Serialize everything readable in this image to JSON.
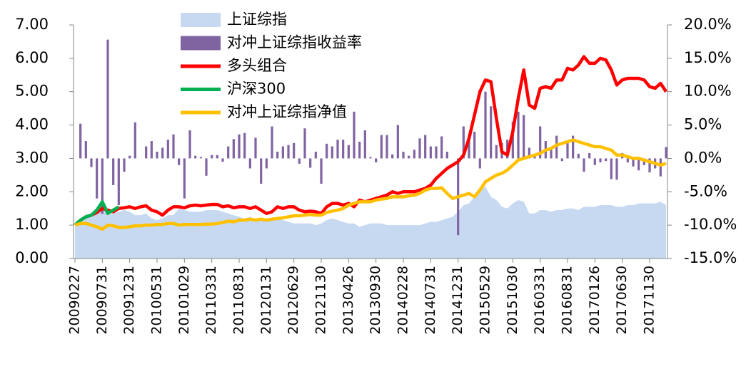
{
  "chart_data": {
    "type": "combo",
    "categories": [
      "20090227",
      null,
      null,
      null,
      null,
      "20090731",
      null,
      null,
      null,
      null,
      "20091231",
      null,
      null,
      null,
      null,
      "20100531",
      null,
      null,
      null,
      null,
      "20101029",
      null,
      null,
      null,
      null,
      "20110331",
      null,
      null,
      null,
      null,
      "20110831",
      null,
      null,
      null,
      null,
      "20120131",
      null,
      null,
      null,
      null,
      "20120629",
      null,
      null,
      null,
      null,
      "20121130",
      null,
      null,
      null,
      null,
      "20130426",
      null,
      null,
      null,
      null,
      "20130930",
      null,
      null,
      null,
      null,
      "20140228",
      null,
      null,
      null,
      null,
      "20140731",
      null,
      null,
      null,
      null,
      "20141231",
      null,
      null,
      null,
      null,
      "20150529",
      null,
      null,
      null,
      null,
      "20151030",
      null,
      null,
      null,
      null,
      "20160331",
      null,
      null,
      null,
      null,
      "20160831",
      null,
      null,
      null,
      null,
      "20170126",
      null,
      null,
      null,
      null,
      "20170630",
      null,
      null,
      null,
      null,
      "20171130",
      null,
      null,
      null
    ],
    "series": [
      {
        "name": "上证综指",
        "kind": "area",
        "color": "#c6d9f1",
        "values": [
          0.95,
          1.1,
          1.25,
          1.3,
          1.5,
          1.6,
          1.3,
          1.35,
          1.4,
          1.45,
          1.4,
          1.3,
          1.3,
          1.35,
          1.2,
          1.15,
          1.2,
          1.3,
          1.3,
          1.5,
          1.45,
          1.4,
          1.4,
          1.4,
          1.45,
          1.45,
          1.45,
          1.4,
          1.35,
          1.3,
          1.25,
          1.2,
          1.25,
          1.15,
          1.15,
          1.15,
          1.2,
          1.2,
          1.15,
          1.1,
          1.05,
          1.05,
          1.05,
          1.05,
          1.0,
          1.05,
          1.15,
          1.2,
          1.15,
          1.1,
          1.05,
          1.05,
          0.95,
          1.0,
          1.05,
          1.05,
          1.05,
          1.0,
          1.0,
          1.0,
          1.0,
          1.0,
          1.0,
          1.0,
          1.05,
          1.1,
          1.1,
          1.15,
          1.2,
          1.25,
          1.4,
          1.6,
          1.65,
          1.85,
          2.1,
          2.15,
          1.85,
          1.75,
          1.55,
          1.5,
          1.65,
          1.75,
          1.7,
          1.35,
          1.35,
          1.45,
          1.45,
          1.4,
          1.45,
          1.45,
          1.5,
          1.5,
          1.45,
          1.55,
          1.55,
          1.55,
          1.6,
          1.6,
          1.6,
          1.55,
          1.55,
          1.6,
          1.6,
          1.65,
          1.65,
          1.65,
          1.65,
          1.7,
          1.6
        ]
      },
      {
        "name": "对冲上证综指收益率",
        "kind": "bar",
        "axis": "y2",
        "color": "#8064a2",
        "values": [
          0,
          5.2,
          2.6,
          -1.3,
          -6.0,
          -8.3,
          17.8,
          -4.0,
          -7.0,
          -2.0,
          0.4,
          5.4,
          0,
          1.8,
          2.6,
          1.0,
          1.6,
          2.8,
          3.6,
          -1.0,
          -6.0,
          4.2,
          0.4,
          0.2,
          -2.6,
          0.5,
          0.5,
          -0.5,
          1.8,
          2.9,
          3.6,
          3.8,
          -1.5,
          3.1,
          -3.8,
          -1.5,
          4.8,
          1.0,
          1.8,
          2.0,
          2.3,
          -0.8,
          4.5,
          -1.4,
          1.0,
          -3.8,
          2.2,
          1.8,
          2.8,
          2.8,
          2.0,
          7.0,
          2.5,
          4.2,
          0.2,
          -0.6,
          3.5,
          3.5,
          0.6,
          5.0,
          1.0,
          0.4,
          1.3,
          3.0,
          3.5,
          1.8,
          1.8,
          3.3,
          1.0,
          0,
          -11.5,
          4.8,
          3.5,
          4.0,
          -1.5,
          10.0,
          7.8,
          2.0,
          2.3,
          2.8,
          5.5,
          7.0,
          6.5,
          1.6,
          0.5,
          4.8,
          2.6,
          1.5,
          3.4,
          -0.4,
          2.5,
          3.4,
          0.7,
          -2.0,
          0.8,
          -1.0,
          -0.6,
          -0.4,
          -3.1,
          -3.2,
          0.8,
          -0.6,
          -1.2,
          -1.8,
          -1.0,
          -2.1,
          -1.5,
          -2.7,
          1.7
        ]
      },
      {
        "name": "多头组合",
        "kind": "line",
        "color": "#ff0000",
        "values": [
          1.0,
          1.15,
          1.25,
          1.3,
          1.38,
          1.5,
          1.45,
          1.4,
          1.5,
          1.52,
          1.55,
          1.5,
          1.55,
          1.58,
          1.45,
          1.4,
          1.3,
          1.45,
          1.55,
          1.55,
          1.52,
          1.58,
          1.6,
          1.58,
          1.6,
          1.62,
          1.62,
          1.55,
          1.58,
          1.52,
          1.55,
          1.55,
          1.5,
          1.55,
          1.45,
          1.35,
          1.4,
          1.55,
          1.5,
          1.55,
          1.55,
          1.45,
          1.4,
          1.42,
          1.4,
          1.35,
          1.55,
          1.65,
          1.65,
          1.6,
          1.65,
          1.55,
          1.75,
          1.7,
          1.75,
          1.8,
          1.85,
          1.9,
          2.0,
          1.95,
          2.0,
          2.0,
          2.0,
          2.05,
          2.1,
          2.2,
          2.4,
          2.55,
          2.7,
          2.8,
          2.9,
          3.1,
          3.6,
          4.3,
          5.0,
          5.35,
          5.3,
          4.2,
          3.2,
          3.1,
          3.8,
          4.8,
          5.65,
          4.6,
          4.5,
          5.1,
          5.15,
          5.1,
          5.35,
          5.35,
          5.7,
          5.65,
          5.8,
          6.05,
          5.85,
          5.85,
          6.0,
          5.95,
          5.65,
          5.2,
          5.35,
          5.4,
          5.4,
          5.4,
          5.35,
          5.15,
          5.1,
          5.25,
          5.0
        ]
      },
      {
        "name": "沪深300",
        "kind": "line",
        "color": "#00b050",
        "values": [
          1.0,
          1.15,
          1.25,
          1.3,
          1.45,
          1.7,
          1.35,
          1.45,
          1.55,
          null,
          null,
          null,
          null,
          null,
          null,
          null,
          null,
          null,
          null,
          null,
          null,
          null,
          null,
          null,
          null,
          null,
          null,
          null,
          null,
          null,
          null,
          null,
          null,
          null,
          null,
          null,
          null,
          null,
          null,
          null,
          null,
          null,
          null,
          null,
          null,
          null,
          null,
          null,
          null,
          null,
          null,
          null,
          null,
          null,
          null,
          null,
          null,
          null,
          null,
          null,
          null,
          null,
          null,
          null,
          null,
          null,
          null,
          null,
          null,
          null,
          null,
          null,
          null,
          null,
          null,
          null,
          null,
          null,
          null,
          null,
          null,
          null,
          null,
          null,
          null,
          null,
          null,
          null,
          null,
          null,
          null,
          null,
          null,
          null,
          null,
          null,
          null,
          null,
          null,
          null,
          null,
          null,
          null,
          null,
          null,
          null,
          null,
          null,
          null
        ]
      },
      {
        "name": "对冲上证综指净值",
        "kind": "line",
        "color": "#ffc000",
        "values": [
          1.0,
          1.05,
          1.05,
          1.0,
          0.95,
          0.88,
          1.0,
          0.98,
          0.93,
          0.93,
          0.95,
          0.98,
          0.98,
          1.0,
          1.0,
          1.02,
          1.02,
          1.05,
          1.05,
          1.0,
          1.02,
          1.02,
          1.02,
          1.02,
          1.03,
          1.03,
          1.05,
          1.08,
          1.12,
          1.1,
          1.15,
          1.15,
          1.18,
          1.15,
          1.18,
          1.15,
          1.18,
          1.2,
          1.22,
          1.25,
          1.28,
          1.28,
          1.3,
          1.32,
          1.3,
          1.3,
          1.38,
          1.42,
          1.45,
          1.5,
          1.6,
          1.65,
          1.7,
          1.7,
          1.7,
          1.75,
          1.78,
          1.8,
          1.85,
          1.85,
          1.85,
          1.88,
          1.9,
          1.95,
          2.05,
          2.1,
          2.1,
          2.12,
          1.95,
          1.8,
          1.85,
          1.9,
          1.95,
          1.85,
          2.05,
          2.3,
          2.4,
          2.5,
          2.55,
          2.65,
          2.8,
          2.95,
          3.0,
          3.05,
          3.1,
          3.15,
          3.25,
          3.3,
          3.4,
          3.45,
          3.5,
          3.55,
          3.5,
          3.45,
          3.4,
          3.35,
          3.35,
          3.3,
          3.25,
          3.1,
          3.1,
          3.05,
          3.0,
          3.0,
          2.95,
          2.9,
          2.85,
          2.8,
          2.85
        ]
      }
    ],
    "ylim": [
      0,
      7
    ],
    "yticks": [
      {
        "value": 0,
        "label": "0.00"
      },
      {
        "value": 1,
        "label": "1.00"
      },
      {
        "value": 2,
        "label": "2.00"
      },
      {
        "value": 3,
        "label": "3.00"
      },
      {
        "value": 4,
        "label": "4.00"
      },
      {
        "value": 5,
        "label": "5.00"
      },
      {
        "value": 6,
        "label": "6.00"
      },
      {
        "value": 7,
        "label": "7.00"
      }
    ],
    "y2lim": [
      -15,
      20
    ],
    "y2ticks": [
      {
        "value": -15,
        "label": "-15.0%"
      },
      {
        "value": -10,
        "label": "-10.0%"
      },
      {
        "value": -5,
        "label": "-5.0%"
      },
      {
        "value": 0,
        "label": "0.0%"
      },
      {
        "value": 5,
        "label": "5.0%"
      },
      {
        "value": 10,
        "label": "10.0%"
      },
      {
        "value": 15,
        "label": "15.0%"
      },
      {
        "value": 20,
        "label": "20.0%"
      }
    ],
    "legend": "top"
  }
}
